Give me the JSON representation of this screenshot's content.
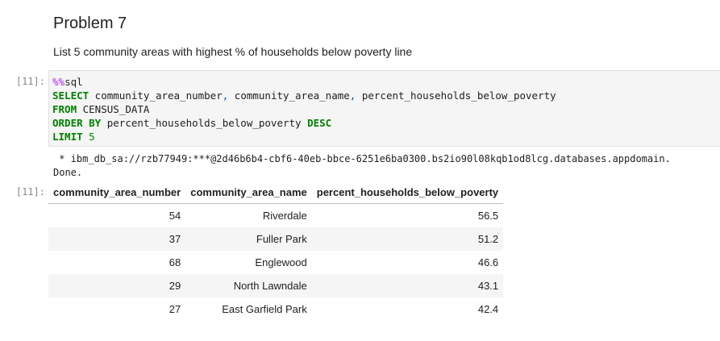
{
  "heading": "Problem 7",
  "description": "List 5 community areas with highest % of households below poverty line",
  "input_prompt": "[11]:",
  "code": {
    "lines": [
      [
        {
          "text": "%%",
          "color": "#aa22ff"
        },
        {
          "text": "sql",
          "color": "#212121"
        }
      ],
      [
        {
          "text": "SELECT",
          "color": "#008000",
          "bold": true
        },
        {
          "text": " community_area_number",
          "color": "#212121"
        },
        {
          "text": ",",
          "color": "#0055aa"
        },
        {
          "text": " community_area_name",
          "color": "#212121"
        },
        {
          "text": ",",
          "color": "#0055aa"
        },
        {
          "text": " percent_households_below_poverty",
          "color": "#212121"
        }
      ],
      [
        {
          "text": "FROM",
          "color": "#008000",
          "bold": true
        },
        {
          "text": " CENSUS_DATA",
          "color": "#212121"
        }
      ],
      [
        {
          "text": "ORDER BY",
          "color": "#008000",
          "bold": true
        },
        {
          "text": " percent_households_below_poverty ",
          "color": "#212121"
        },
        {
          "text": "DESC",
          "color": "#008000",
          "bold": true
        }
      ],
      [
        {
          "text": "LIMIT",
          "color": "#008000",
          "bold": true
        },
        {
          "text": " ",
          "color": "#212121"
        },
        {
          "text": "5",
          "color": "#008000"
        }
      ]
    ]
  },
  "stdout": [
    " * ibm_db_sa://rzb77949:***@2d46b6b4-cbf6-40eb-bbce-6251e6ba0300.bs2io90l08kqb1od8lcg.databases.appdomain.",
    "Done."
  ],
  "output_prompt": "[11]:",
  "table": {
    "columns": [
      "community_area_number",
      "community_area_name",
      "percent_households_below_poverty"
    ],
    "rows": [
      [
        "54",
        "Riverdale",
        "56.5"
      ],
      [
        "37",
        "Fuller Park",
        "51.2"
      ],
      [
        "68",
        "Englewood",
        "46.6"
      ],
      [
        "29",
        "North Lawndale",
        "43.1"
      ],
      [
        "27",
        "East Garfield Park",
        "42.4"
      ]
    ]
  }
}
